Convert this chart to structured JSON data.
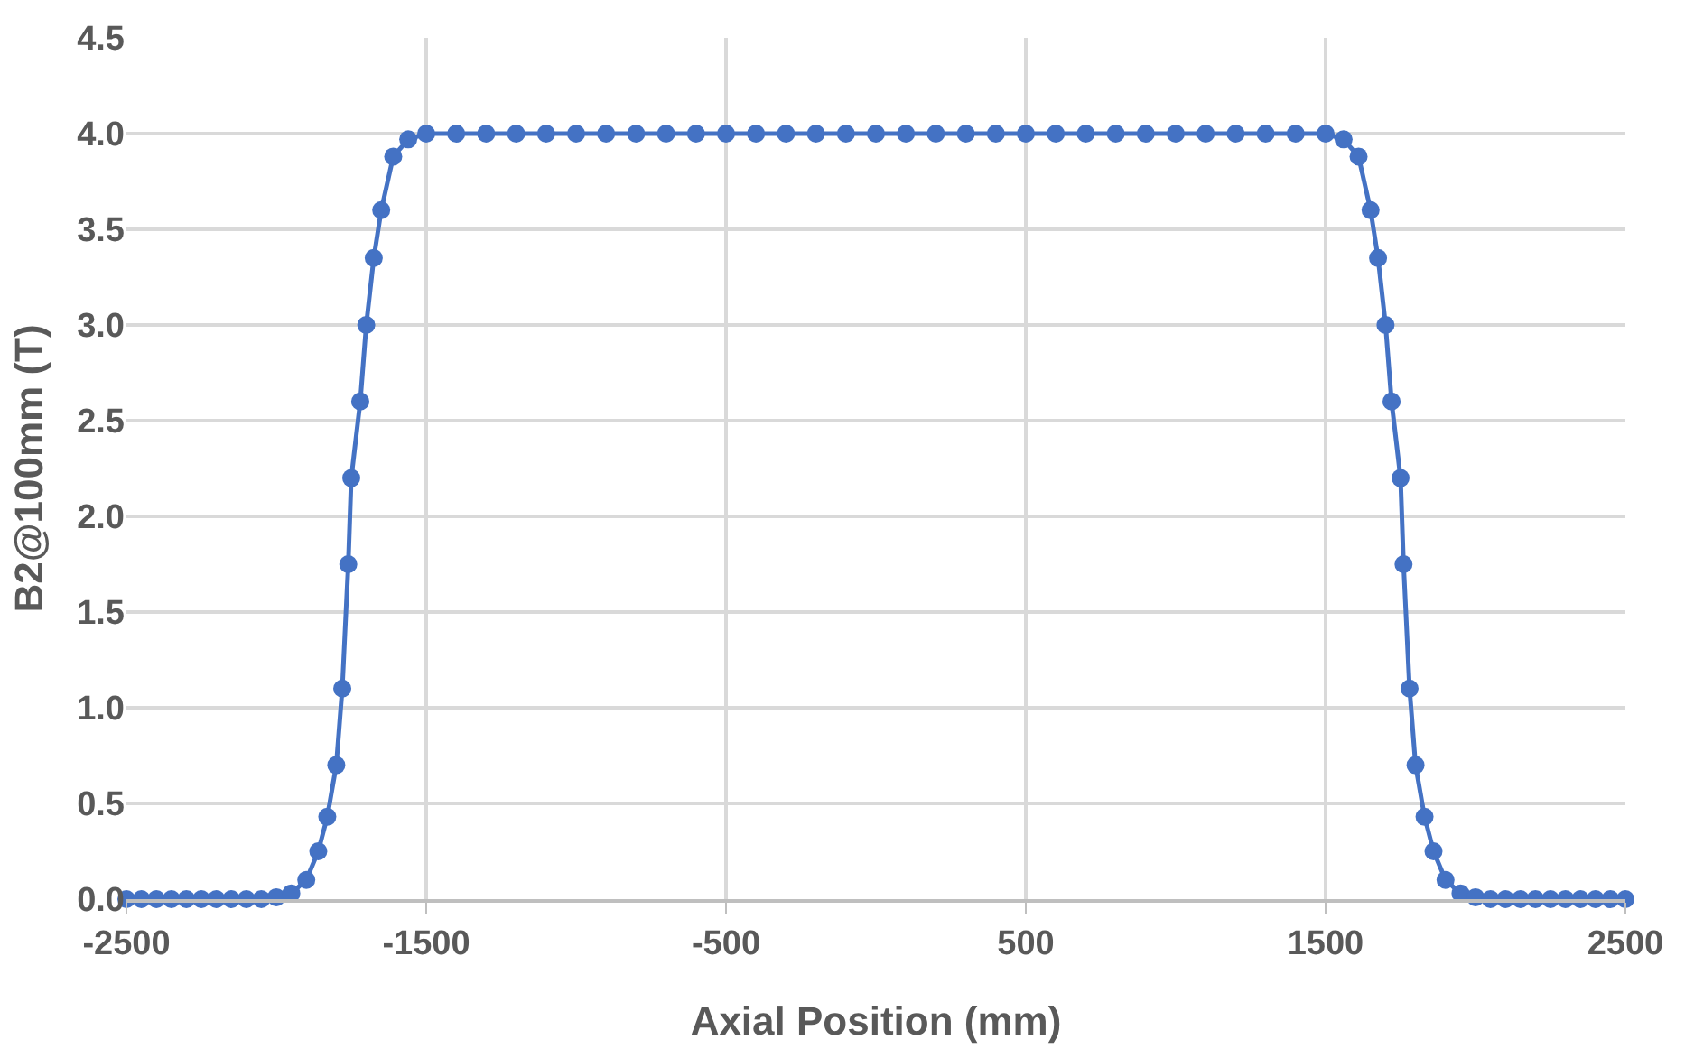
{
  "chart_data": {
    "type": "line",
    "xlabel": "Axial Position (mm)",
    "ylabel": "B2@100mm (T)",
    "xlim": [
      -2500,
      2500
    ],
    "xticks": [
      -2500,
      -1500,
      -500,
      500,
      1500,
      2500
    ],
    "ylim": [
      0,
      4.5
    ],
    "yticks": [
      {
        "value": 0,
        "label": "0.0"
      },
      {
        "value": 0.5,
        "label": "0.5"
      },
      {
        "value": 1,
        "label": "1.0"
      },
      {
        "value": 1.5,
        "label": "1.5"
      },
      {
        "value": 2,
        "label": "2.0"
      },
      {
        "value": 2.5,
        "label": "2.5"
      },
      {
        "value": 3,
        "label": "3.0"
      },
      {
        "value": 3.5,
        "label": "3.5"
      },
      {
        "value": 4,
        "label": "4.0"
      },
      {
        "value": 4.5,
        "label": "4.5"
      }
    ],
    "grid": true,
    "marker": "circle",
    "line_style": "solid",
    "series": [
      {
        "color": "#4472c4",
        "x": [
          -2500,
          -2450,
          -2400,
          -2350,
          -2300,
          -2250,
          -2200,
          -2150,
          -2100,
          -2050,
          -2000,
          -1950,
          -1900,
          -1860,
          -1830,
          -1800,
          -1780,
          -1760,
          -1750,
          -1720,
          -1700,
          -1675,
          -1650,
          -1610,
          -1560,
          -1500,
          -1400,
          -1300,
          -1200,
          -1100,
          -1000,
          -900,
          -800,
          -700,
          -600,
          -500,
          -400,
          -300,
          -200,
          -100,
          0,
          100,
          200,
          300,
          400,
          500,
          600,
          700,
          800,
          900,
          1000,
          1100,
          1200,
          1300,
          1400,
          1500,
          1560,
          1610,
          1650,
          1675,
          1700,
          1720,
          1750,
          1760,
          1780,
          1800,
          1830,
          1860,
          1900,
          1950,
          2000,
          2050,
          2100,
          2150,
          2200,
          2250,
          2300,
          2350,
          2400,
          2450,
          2500
        ],
        "values": [
          0,
          0,
          0,
          0,
          0,
          0,
          0,
          0,
          0,
          0,
          0.01,
          0.03,
          0.1,
          0.25,
          0.43,
          0.7,
          1.1,
          1.75,
          2.2,
          2.6,
          3.0,
          3.35,
          3.6,
          3.88,
          3.97,
          4.0,
          4.0,
          4.0,
          4.0,
          4.0,
          4.0,
          4.0,
          4.0,
          4.0,
          4.0,
          4.0,
          4.0,
          4.0,
          4.0,
          4.0,
          4.0,
          4.0,
          4.0,
          4.0,
          4.0,
          4.0,
          4.0,
          4.0,
          4.0,
          4.0,
          4.0,
          4.0,
          4.0,
          4.0,
          4.0,
          4.0,
          3.97,
          3.88,
          3.6,
          3.35,
          3.0,
          2.6,
          2.2,
          1.75,
          1.1,
          0.7,
          0.43,
          0.25,
          0.1,
          0.03,
          0.01,
          0,
          0,
          0,
          0,
          0,
          0,
          0,
          0,
          0,
          0
        ]
      }
    ]
  }
}
